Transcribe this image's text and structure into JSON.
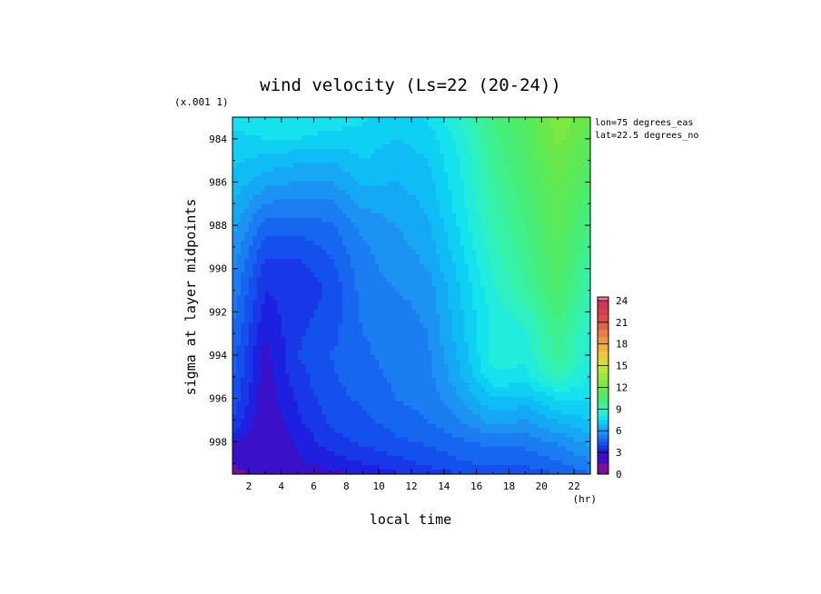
{
  "chart_data": {
    "type": "heatmap",
    "title": "wind velocity (Ls=22 (20-24))",
    "scale_note": "(x.001 1)",
    "xlabel": "local time",
    "xunit": "(hr)",
    "ylabel": "sigma at layer midpoints",
    "annotations": [
      "lon=75 degrees_eas",
      "lat=22.5 degrees_no"
    ],
    "x_range": [
      1,
      23
    ],
    "y_range": [
      983,
      999.5
    ],
    "x_ticks": [
      2,
      4,
      6,
      8,
      10,
      12,
      14,
      16,
      18,
      20,
      22
    ],
    "y_ticks": [
      984,
      986,
      988,
      990,
      992,
      994,
      996,
      998
    ],
    "colorbar": {
      "range": [
        0,
        24.5
      ],
      "ticks": [
        0,
        3,
        6,
        9,
        12,
        15,
        18,
        21,
        24
      ],
      "levels": [
        0,
        1.5,
        3,
        3.5,
        4,
        4.5,
        5,
        5.5,
        6,
        6.5,
        7,
        7.5,
        8,
        8.5,
        9,
        9.5,
        10,
        10.5,
        11,
        11.5,
        12,
        13,
        14,
        15,
        16,
        17,
        18,
        19,
        20,
        21,
        22,
        23,
        24,
        24.5
      ],
      "colors": [
        "#7a0f9e",
        "#3a10c8",
        "#1d20e0",
        "#1838e8",
        "#1450ee",
        "#1666ef",
        "#1a7df2",
        "#1c92f3",
        "#14a8f5",
        "#10bcf5",
        "#0fd0f2",
        "#16e2ee",
        "#22ecdc",
        "#2ef0c2",
        "#36f2a6",
        "#3ef08e",
        "#46ee78",
        "#50ec66",
        "#5cea56",
        "#6ae84a",
        "#7ce840",
        "#9ce83c",
        "#bce43a",
        "#d8dc3a",
        "#ecc83a",
        "#f2b040",
        "#ee9646",
        "#e87c4a",
        "#e2644c",
        "#dc4e4e",
        "#d63c52",
        "#d03456",
        "#e08090"
      ]
    },
    "x": [
      1,
      3,
      5,
      7,
      9,
      11,
      13,
      15,
      17,
      19,
      21,
      23
    ],
    "y": [
      983,
      984,
      985,
      986,
      987,
      988,
      989,
      990,
      991,
      992,
      993,
      994,
      995,
      996,
      997,
      998,
      999,
      999.5
    ],
    "values": [
      [
        7.6,
        7.8,
        8.0,
        7.8,
        7.6,
        7.2,
        7.6,
        8.6,
        10.0,
        11.0,
        12.4,
        11.6
      ],
      [
        7.4,
        7.5,
        7.5,
        7.3,
        7.3,
        7.0,
        7.2,
        8.2,
        9.8,
        10.8,
        12.2,
        11.2
      ],
      [
        7.1,
        6.8,
        6.6,
        6.5,
        7.0,
        6.7,
        7.0,
        8.0,
        9.6,
        10.6,
        11.8,
        10.8
      ],
      [
        6.8,
        6.2,
        6.0,
        6.0,
        6.6,
        6.5,
        6.8,
        7.9,
        9.4,
        10.4,
        11.6,
        10.6
      ],
      [
        6.5,
        5.5,
        5.3,
        5.4,
        6.1,
        6.2,
        6.6,
        7.8,
        9.2,
        10.2,
        11.4,
        10.2
      ],
      [
        6.2,
        4.8,
        4.8,
        4.9,
        5.7,
        6.0,
        6.4,
        7.6,
        9.0,
        10.0,
        11.2,
        9.9
      ],
      [
        5.9,
        4.3,
        4.2,
        4.6,
        5.4,
        5.8,
        6.2,
        7.4,
        8.8,
        9.8,
        11.0,
        9.6
      ],
      [
        5.6,
        3.8,
        3.8,
        4.3,
        5.3,
        5.7,
        6.0,
        7.2,
        8.6,
        9.6,
        10.8,
        9.3
      ],
      [
        5.4,
        3.5,
        3.6,
        4.1,
        5.2,
        5.5,
        5.7,
        7.0,
        8.4,
        9.4,
        10.6,
        9.0
      ],
      [
        5.2,
        3.3,
        3.8,
        4.2,
        5.1,
        5.3,
        5.6,
        6.9,
        8.2,
        8.8,
        10.2,
        8.7
      ],
      [
        5.0,
        3.0,
        3.9,
        4.3,
        5.0,
        5.2,
        5.5,
        6.8,
        8.2,
        8.4,
        9.8,
        8.4
      ],
      [
        4.8,
        2.8,
        4.0,
        4.5,
        4.9,
        5.2,
        5.4,
        6.6,
        8.2,
        8.2,
        9.6,
        8.2
      ],
      [
        4.6,
        2.7,
        3.8,
        4.4,
        4.8,
        5.1,
        5.3,
        6.4,
        7.9,
        7.8,
        9.0,
        7.9
      ],
      [
        4.4,
        2.6,
        3.6,
        4.3,
        4.6,
        5.0,
        5.2,
        6.0,
        7.0,
        6.8,
        7.6,
        7.6
      ],
      [
        4.0,
        2.5,
        3.4,
        4.1,
        4.4,
        4.7,
        5.0,
        5.5,
        6.2,
        6.0,
        6.6,
        7.0
      ],
      [
        3.2,
        2.2,
        3.1,
        3.8,
        4.1,
        4.4,
        4.6,
        4.9,
        5.2,
        5.2,
        5.6,
        6.2
      ],
      [
        1.6,
        2.3,
        2.9,
        3.2,
        3.5,
        3.8,
        4.1,
        4.4,
        4.6,
        4.6,
        4.9,
        5.4
      ],
      [
        1.0,
        2.0,
        2.6,
        2.8,
        3.1,
        3.4,
        3.7,
        4.0,
        4.2,
        4.2,
        4.5,
        5.0
      ]
    ]
  }
}
